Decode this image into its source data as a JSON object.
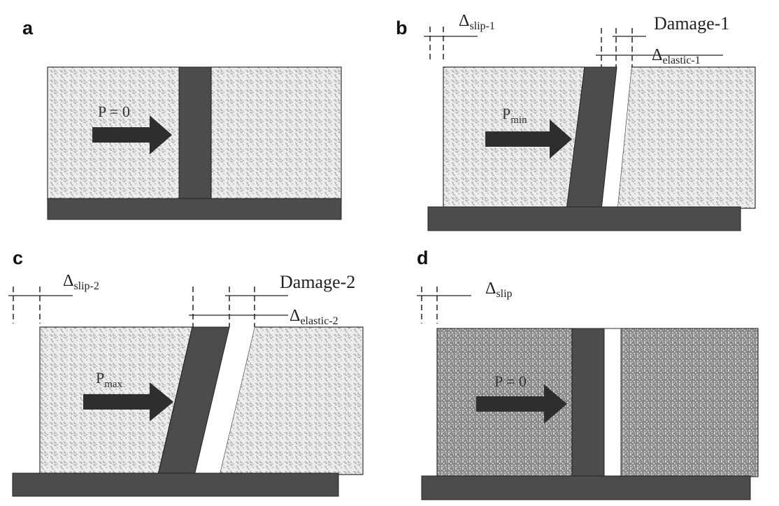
{
  "panels": {
    "a": {
      "letter": "a",
      "load_main": "P = 0",
      "load_sub": ""
    },
    "b": {
      "letter": "b",
      "load_main": "P",
      "load_sub": "min",
      "slip_main": "Δ",
      "slip_sub": "slip-1",
      "damage": "Damage-1",
      "elastic_main": "Δ",
      "elastic_sub": "elastic-1"
    },
    "c": {
      "letter": "c",
      "load_main": "P",
      "load_sub": "max",
      "slip_main": "Δ",
      "slip_sub": "slip-2",
      "damage": "Damage-2",
      "elastic_main": "Δ",
      "elastic_sub": "elastic-2"
    },
    "d": {
      "letter": "d",
      "load_main": "P = 0",
      "load_sub": "",
      "slip_main": "Δ",
      "slip_sub": "slip"
    }
  },
  "colors": {
    "steel": "#4c4c4c",
    "concrete_light": "#e9e9e9",
    "concrete_dark": "#8f8f8f",
    "arrow": "#2e2e2e"
  }
}
